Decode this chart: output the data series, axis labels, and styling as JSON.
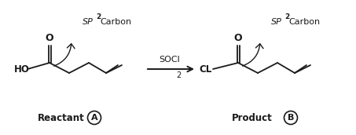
{
  "bg_color": "#ffffff",
  "text_color": "#1a1a1a",
  "arrow_color": "#1a1a1a",
  "reactant_label": "Reactant",
  "product_label": "Product",
  "label_A": "A",
  "label_B": "B",
  "reagent": "SOCl",
  "reagent_sub": "2",
  "sp2_label": "SP",
  "sp2_super": "2",
  "sp2_suffix": "Carbon",
  "ho_label": "HO",
  "cl_label": "CL",
  "o_label": "O",
  "figw": 4.53,
  "figh": 1.72,
  "dpi": 100
}
